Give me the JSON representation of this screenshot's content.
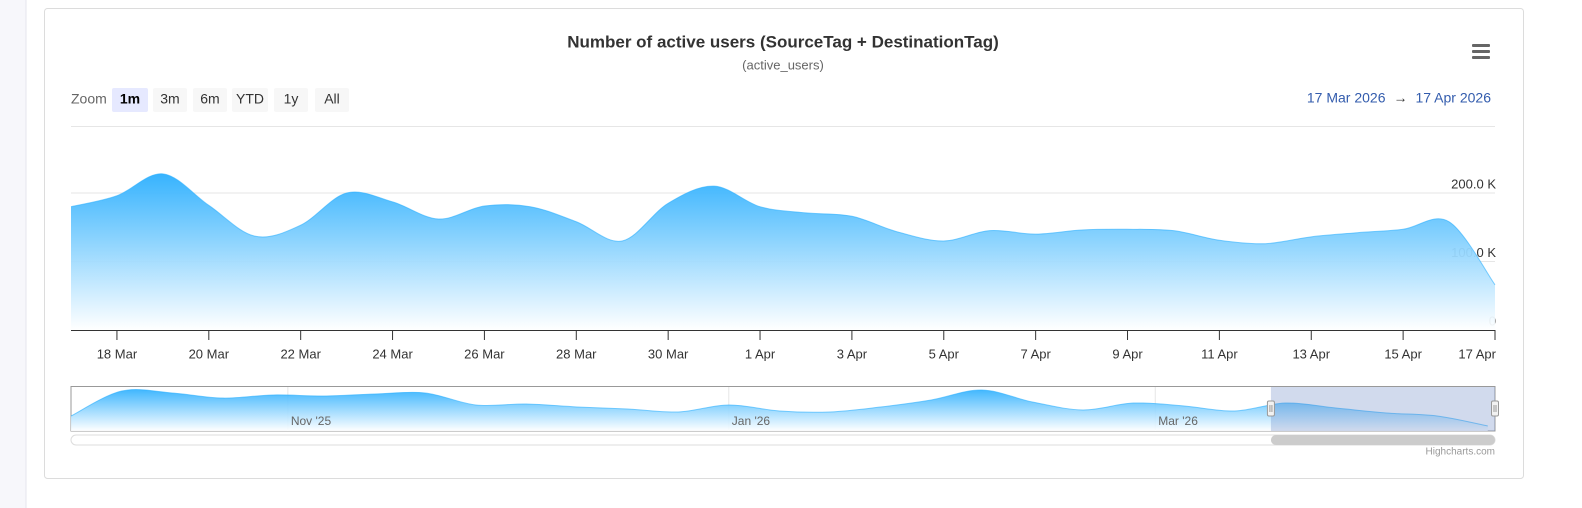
{
  "chart_data": {
    "type": "area",
    "title": "Number of active users (SourceTag + DestinationTag)",
    "subtitle": "(active_users)",
    "zoom_label": "Zoom",
    "zoom_buttons": [
      "1m",
      "3m",
      "6m",
      "YTD",
      "1y",
      "All"
    ],
    "selected_button": 0,
    "range_from": "17 Mar 2026",
    "range_separator": "→",
    "range_to": "17 Apr 2026",
    "color": "#2caffe",
    "grid": true,
    "x": [
      "2026-03-17",
      "2026-03-18",
      "2026-03-19",
      "2026-03-20",
      "2026-03-21",
      "2026-03-22",
      "2026-03-23",
      "2026-03-24",
      "2026-03-25",
      "2026-03-26",
      "2026-03-27",
      "2026-03-28",
      "2026-03-29",
      "2026-03-30",
      "2026-03-31",
      "2026-04-01",
      "2026-04-02",
      "2026-04-03",
      "2026-04-04",
      "2026-04-05",
      "2026-04-06",
      "2026-04-07",
      "2026-04-08",
      "2026-04-09",
      "2026-04-10",
      "2026-04-11",
      "2026-04-12",
      "2026-04-13",
      "2026-04-14",
      "2026-04-15",
      "2026-04-16",
      "2026-04-17"
    ],
    "values": [
      180000,
      196000,
      228000,
      182000,
      137000,
      153000,
      200000,
      187000,
      162000,
      181000,
      180000,
      158000,
      130000,
      185000,
      210000,
      180000,
      171000,
      166000,
      143000,
      130000,
      145000,
      140000,
      146000,
      147000,
      145000,
      131000,
      126000,
      136000,
      142000,
      147000,
      158000,
      66000
    ],
    "xlim": [
      "2026-03-17",
      "2026-04-17"
    ],
    "xticks": [
      {
        "value": "2026-03-18",
        "label": "18 Mar"
      },
      {
        "value": "2026-03-20",
        "label": "20 Mar"
      },
      {
        "value": "2026-03-22",
        "label": "22 Mar"
      },
      {
        "value": "2026-03-24",
        "label": "24 Mar"
      },
      {
        "value": "2026-03-26",
        "label": "26 Mar"
      },
      {
        "value": "2026-03-28",
        "label": "28 Mar"
      },
      {
        "value": "2026-03-30",
        "label": "30 Mar"
      },
      {
        "value": "2026-04-01",
        "label": "1 Apr"
      },
      {
        "value": "2026-04-03",
        "label": "3 Apr"
      },
      {
        "value": "2026-04-05",
        "label": "5 Apr"
      },
      {
        "value": "2026-04-07",
        "label": "7 Apr"
      },
      {
        "value": "2026-04-09",
        "label": "9 Apr"
      },
      {
        "value": "2026-04-11",
        "label": "11 Apr"
      },
      {
        "value": "2026-04-13",
        "label": "13 Apr"
      },
      {
        "value": "2026-04-15",
        "label": "15 Apr"
      },
      {
        "value": "2026-04-17",
        "label": "17 Apr"
      }
    ],
    "ylim": [
      0,
      300000
    ],
    "yticks": [
      0,
      {
        "value": 100000,
        "label": "100.0 K"
      },
      {
        "value": 200000,
        "label": "200.0 K"
      }
    ],
    "navigator": {
      "x": [
        "2025-10-02",
        "2025-10-09",
        "2025-10-16",
        "2025-10-23",
        "2025-10-30",
        "2025-11-06",
        "2025-11-13",
        "2025-11-20",
        "2025-11-27",
        "2025-12-04",
        "2025-12-11",
        "2025-12-18",
        "2025-12-25",
        "2026-01-01",
        "2026-01-08",
        "2026-01-15",
        "2026-01-22",
        "2026-01-29",
        "2026-02-05",
        "2026-02-12",
        "2026-02-19",
        "2026-02-26",
        "2026-03-05",
        "2026-03-12",
        "2026-03-19",
        "2026-03-26",
        "2026-04-02",
        "2026-04-09",
        "2026-04-16"
      ],
      "values": [
        126000,
        336000,
        320000,
        277000,
        303000,
        294000,
        311000,
        320000,
        219000,
        227000,
        202000,
        185000,
        160000,
        219000,
        168000,
        160000,
        202000,
        261000,
        345000,
        244000,
        177000,
        235000,
        210000,
        168000,
        235000,
        193000,
        151000,
        126000,
        42000
      ],
      "xlim": [
        "2025-10-02",
        "2026-04-17"
      ],
      "ylim": [
        0,
        370000
      ],
      "xticks": [
        {
          "value": "2025-11-01",
          "label": "Nov '25"
        },
        {
          "value": "2026-01-01",
          "label": "Jan '26"
        },
        {
          "value": "2026-03-01",
          "label": "Mar '26"
        }
      ]
    },
    "credits": "Highcharts.com"
  }
}
